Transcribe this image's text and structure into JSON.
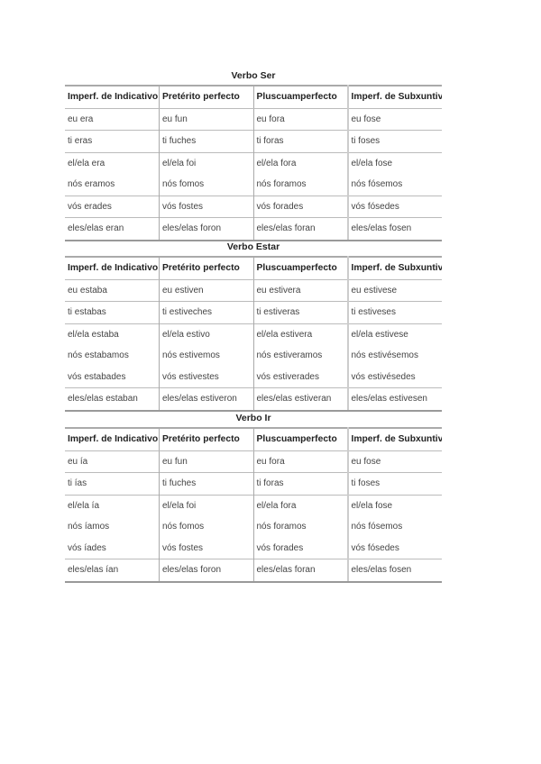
{
  "headers": [
    "Imperf. de Indicativo",
    "Pretérito perfecto",
    "Pluscuamperfecto",
    "Imperf. de Subxuntivo"
  ],
  "tables": [
    {
      "title": "Verbo Ser",
      "rows": [
        [
          "eu era",
          "eu fun",
          "eu fora",
          "eu fose"
        ],
        [
          "ti eras",
          "ti fuches",
          "ti foras",
          "ti foses"
        ],
        [
          "el/ela era",
          "el/ela foi",
          "el/ela fora",
          "el/ela fose"
        ],
        [
          "nós eramos",
          "nós fomos",
          "nós foramos",
          "nós fósemos"
        ],
        [
          "vós erades",
          "vós fostes",
          "vós forades",
          "vós fósedes"
        ],
        [
          "eles/elas eran",
          "eles/elas foron",
          "eles/elas foran",
          "eles/elas fosen"
        ]
      ]
    },
    {
      "title": "Verbo Estar",
      "rows": [
        [
          "eu estaba",
          "eu estiven",
          "eu estivera",
          "eu estivese"
        ],
        [
          "ti estabas",
          "ti estiveches",
          "ti estiveras",
          "ti estiveses"
        ],
        [
          "el/ela estaba",
          "el/ela estivo",
          "el/ela estivera",
          "el/ela estivese"
        ],
        [
          "nós estabamos",
          "nós estivemos",
          "nós estiveramos",
          "nós estivésemos"
        ],
        [
          "vós estabades",
          "vós estivestes",
          "vós estiverades",
          "vós estivésedes"
        ],
        [
          "eles/elas estaban",
          "eles/elas estiveron",
          "eles/elas estiveran",
          "eles/elas estivesen"
        ]
      ]
    },
    {
      "title": "Verbo Ir",
      "rows": [
        [
          "eu ía",
          "eu fun",
          "eu fora",
          "eu fose"
        ],
        [
          "ti ías",
          "ti fuches",
          "ti foras",
          "ti foses"
        ],
        [
          "el/ela ía",
          "el/ela foi",
          "el/ela fora",
          "el/ela fose"
        ],
        [
          "nós íamos",
          "nós fomos",
          "nós foramos",
          "nós fósemos"
        ],
        [
          "vós íades",
          "vós fostes",
          "vós forades",
          "vós fósedes"
        ],
        [
          "eles/elas ían",
          "eles/elas foron",
          "eles/elas foran",
          "eles/elas fosen"
        ]
      ]
    }
  ]
}
